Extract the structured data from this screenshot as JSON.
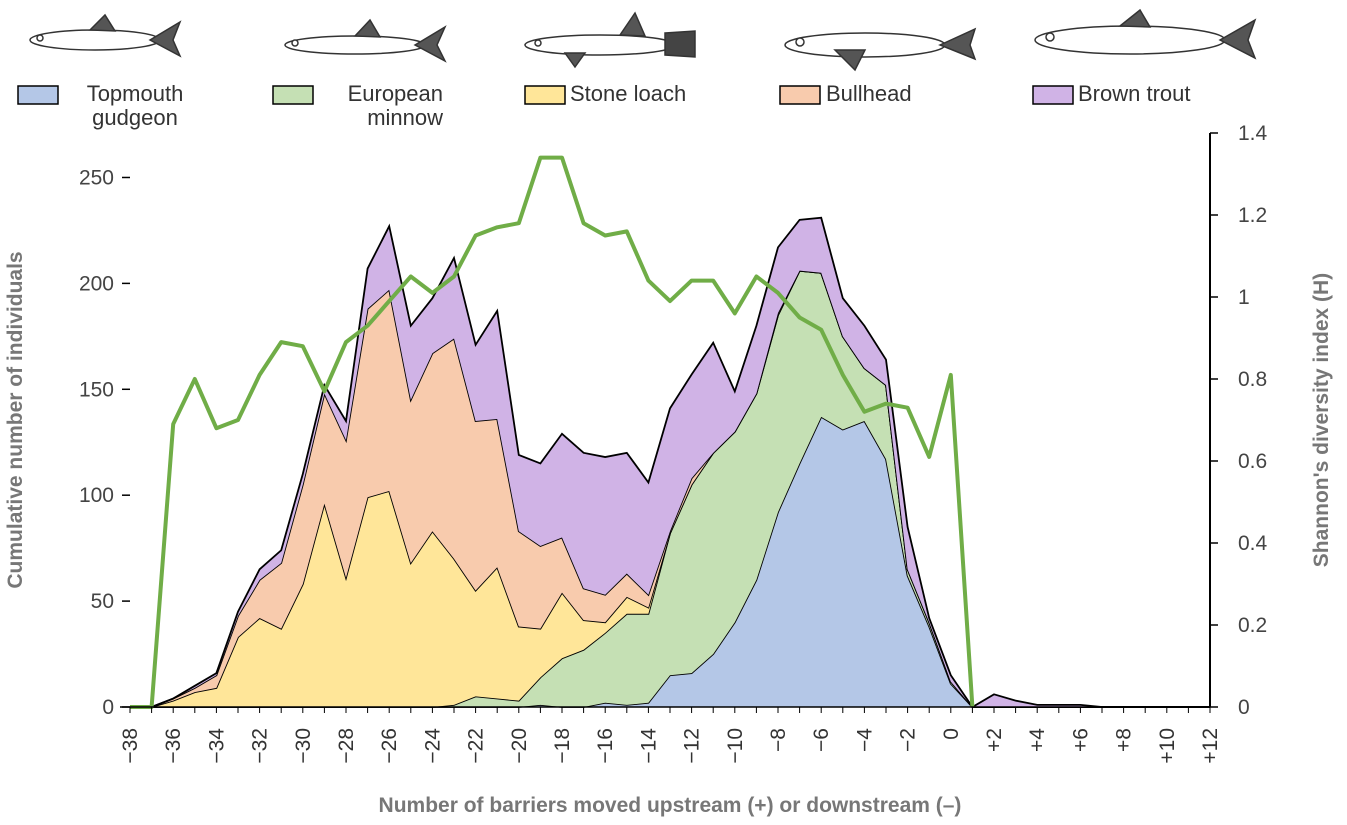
{
  "chart_data": {
    "type": "stacked_area",
    "x_label": "Number of barriers moved upstream (+) or downstream (–)",
    "y_label": "Cumulative number of individuals",
    "y2_label": "Shannon's diversity index (H)",
    "categories": [
      "−38",
      null,
      "−36",
      null,
      "−34",
      null,
      "−32",
      null,
      "−30",
      null,
      "−28",
      null,
      "−26",
      null,
      "−24",
      null,
      "−22",
      null,
      "−20",
      null,
      "−18",
      null,
      "−16",
      null,
      "−14",
      null,
      "−12",
      null,
      "−10",
      null,
      "−8",
      null,
      "−6",
      null,
      "−4",
      null,
      "−2",
      null,
      "0",
      null,
      "+2",
      null,
      "+4",
      null,
      "+6",
      null,
      "+8",
      null,
      "+10",
      null,
      "+12"
    ],
    "ylim": [
      0,
      271
    ],
    "yticks": [
      0,
      50,
      100,
      150,
      200,
      250
    ],
    "y2lim": [
      0,
      1.4
    ],
    "y2ticks": [
      0,
      0.2,
      0.4,
      0.6,
      0.8,
      1,
      1.2,
      1.4
    ],
    "series": [
      {
        "name": "Topmouth gudgeon",
        "color": "#b4c7e7",
        "values": [
          0,
          0,
          0,
          0,
          0,
          0,
          0,
          0,
          0,
          0,
          0,
          0,
          0,
          0,
          0,
          0,
          0,
          0,
          0,
          1,
          0,
          0,
          2,
          1,
          2,
          15,
          16,
          25,
          40,
          60,
          92,
          115,
          137,
          131,
          135,
          117,
          62,
          38,
          11,
          0,
          0,
          0,
          0,
          0,
          0,
          0,
          0,
          0,
          0,
          0,
          0
        ]
      },
      {
        "name": "European minnow",
        "color": "#c5e0b4",
        "values": [
          0,
          0,
          0,
          0,
          0,
          0,
          0,
          0,
          0,
          0,
          0,
          0,
          0,
          0,
          0,
          1,
          5,
          4,
          3,
          13,
          23,
          27,
          33,
          43,
          42,
          67,
          89,
          95,
          90,
          88,
          93,
          91,
          68,
          44,
          25,
          35,
          3,
          2,
          1,
          0,
          0,
          0,
          0,
          0,
          0,
          0,
          0,
          0,
          0,
          0,
          0
        ]
      },
      {
        "name": "Stone loach",
        "color": "#ffe699",
        "values": [
          0,
          0,
          3,
          7,
          9,
          33,
          42,
          37,
          58,
          96,
          61,
          99,
          102,
          68,
          83,
          69,
          50,
          62,
          35,
          23,
          31,
          14,
          5,
          8,
          3,
          0,
          0,
          0,
          0,
          0,
          0,
          0,
          0,
          0,
          0,
          0,
          0,
          0,
          0,
          0,
          0,
          0,
          0,
          0,
          0,
          0,
          0,
          0,
          0,
          0,
          0
        ]
      },
      {
        "name": "Bullhead",
        "color": "#f8cbad",
        "values": [
          0,
          0,
          1,
          2,
          6,
          10,
          18,
          31,
          47,
          52,
          65,
          89,
          95,
          77,
          84,
          104,
          80,
          70,
          45,
          39,
          26,
          15,
          13,
          11,
          6,
          1,
          3,
          0,
          0,
          0,
          1,
          0,
          0,
          0,
          0,
          0,
          0,
          0,
          0,
          0,
          0,
          0,
          0,
          0,
          0,
          0,
          0,
          0,
          0,
          0,
          0
        ]
      },
      {
        "name": "Brown trout",
        "color": "#d0b3e6",
        "values": [
          0,
          0,
          0,
          1,
          1,
          2,
          5,
          6,
          5,
          4,
          9,
          19,
          30,
          35,
          26,
          38,
          36,
          51,
          36,
          39,
          49,
          64,
          65,
          57,
          53,
          58,
          49,
          52,
          19,
          32,
          31,
          24,
          26,
          18,
          20,
          12,
          20,
          2,
          3,
          0,
          6,
          3,
          1,
          1,
          1,
          0,
          0,
          0,
          0,
          0,
          0
        ]
      },
      {
        "name": "Shannon's diversity index",
        "color": "#70ad47",
        "axis": "y2",
        "values": [
          0,
          0,
          0.69,
          0.8,
          0.68,
          0.7,
          0.81,
          0.89,
          0.88,
          0.77,
          0.89,
          0.93,
          0.99,
          1.05,
          1.01,
          1.05,
          1.15,
          1.17,
          1.18,
          1.34,
          1.34,
          1.18,
          1.15,
          1.16,
          1.04,
          0.99,
          1.04,
          1.04,
          0.96,
          1.05,
          1.01,
          0.95,
          0.92,
          0.81,
          0.72,
          0.74,
          0.73,
          0.61,
          0.81,
          0,
          null,
          null,
          null,
          null,
          null,
          null,
          null,
          null,
          null,
          null,
          null
        ]
      }
    ]
  }
}
